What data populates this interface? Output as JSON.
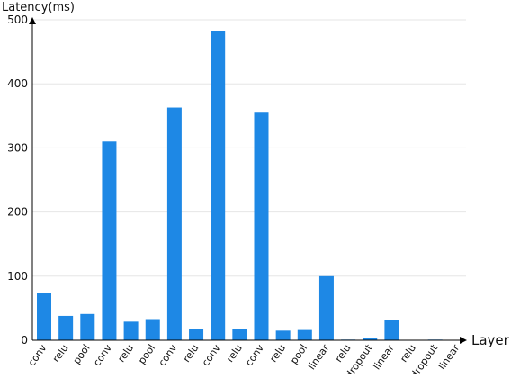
{
  "chart_data": {
    "type": "bar",
    "title": "",
    "xlabel": "Layer",
    "ylabel": "Latency(ms)",
    "ylim": [
      0,
      500
    ],
    "yticks": [
      0,
      100,
      200,
      300,
      400,
      500
    ],
    "grid": true,
    "legend": "none",
    "categories": [
      "conv",
      "relu",
      "pool",
      "conv",
      "relu",
      "pool",
      "conv",
      "relu",
      "conv",
      "relu",
      "conv",
      "relu",
      "pool",
      "linear",
      "relu",
      "dropout",
      "linear",
      "relu",
      "dropout",
      "linear"
    ],
    "values": [
      74,
      38,
      41,
      310,
      29,
      33,
      363,
      18,
      482,
      17,
      355,
      15,
      16,
      100,
      1,
      4,
      31,
      0,
      1,
      0
    ],
    "colors": {
      "bar": "#1E88E5",
      "grid": "#E6E6E6",
      "axis": "#000000"
    }
  }
}
